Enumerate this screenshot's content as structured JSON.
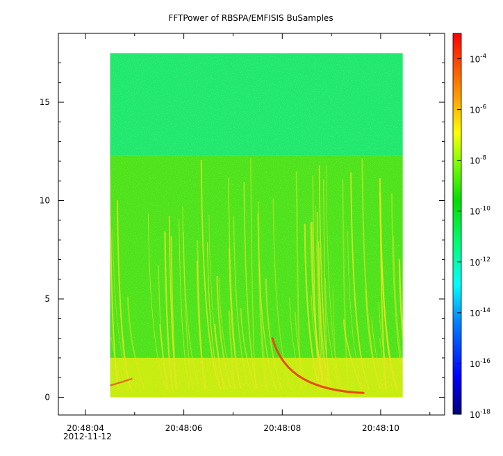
{
  "chart_data": {
    "type": "heatmap",
    "title": "FFTPower of RBSPA/EMFISIS  BuSamples",
    "xlabel": "",
    "ylabel": "",
    "x_ticks": [
      {
        "time": "20:48:04",
        "t": 4,
        "label": "20:48:04"
      },
      {
        "time": "20:48:06",
        "t": 6,
        "label": "20:48:06"
      },
      {
        "time": "20:48:08",
        "t": 8,
        "label": "20:48:08"
      },
      {
        "time": "20:48:10",
        "t": 10,
        "label": "20:48:10"
      }
    ],
    "x_minor_ticks": [
      5,
      7,
      9,
      11
    ],
    "x_date_label": "2012-11-12",
    "xlim": [
      "20:48:03.45",
      "20:48:11.3"
    ],
    "data_time_range": [
      "20:48:04.5",
      "20:48:10.45"
    ],
    "y_ticks": [
      0,
      5,
      10,
      15
    ],
    "ylim": [
      -0.9,
      18.5
    ],
    "data_freq_range": [
      0,
      17.5
    ],
    "colorbar": {
      "scale": "log",
      "range": [
        1e-18,
        0.001
      ],
      "tick_exponents": [
        -18,
        -16,
        -14,
        -12,
        -10,
        -8,
        -6,
        -4
      ],
      "tick_base": "10",
      "colors": [
        "#00007f",
        "#0000ff",
        "#007fff",
        "#00ffff",
        "#00ff7f",
        "#00e000",
        "#7fff00",
        "#ffff00",
        "#ffaa00",
        "#ff5500",
        "#ff0000"
      ]
    },
    "bands": [
      {
        "y_from": 12.3,
        "y_to": 17.5,
        "power_exp": -12.2,
        "color": "#1ee870"
      },
      {
        "y_from": 2.0,
        "y_to": 12.3,
        "power_exp": -10.4,
        "color": "#4de31c"
      },
      {
        "y_from": 0.0,
        "y_to": 2.0,
        "power_exp": -8.6,
        "color": "#c6ed10"
      }
    ],
    "streaks_color": "#e9e420",
    "whistler": {
      "color": "#e84a10",
      "t_start": 7.8,
      "t_end": 9.65,
      "y_start": 3.0,
      "y_end": 0.22
    }
  }
}
